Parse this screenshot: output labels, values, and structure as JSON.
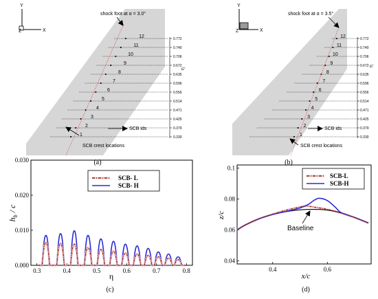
{
  "panel_a": {
    "caption": "(a)",
    "axes": {
      "y": "Y",
      "x": "X",
      "z": "Z"
    },
    "shock_label": "shock foot at α = 3.0°",
    "scb_ids_label": "SCB ids",
    "crest_label": "SCB crest locations",
    "eta_axis_label": "η",
    "ids": [
      "1",
      "2",
      "3",
      "4",
      "5",
      "6",
      "7",
      "8",
      "9",
      "10",
      "11",
      "12"
    ],
    "eta_values": [
      "0.330",
      "0.379",
      "0.425",
      "0.471",
      "0.514",
      "0.556",
      "0.596",
      "0.635",
      "0.672",
      "0.706",
      "0.740",
      "0.772"
    ]
  },
  "panel_b": {
    "caption": "(b)",
    "axes": {
      "y": "Y",
      "x": "X",
      "z": "Z"
    },
    "shock_label": "shock foot at α = 3.5°",
    "scb_ids_label": "SCB ids",
    "crest_label": "SCB crest locations",
    "eta_axis_label": "η",
    "ids": [
      "1",
      "2",
      "3",
      "4",
      "5",
      "6",
      "7",
      "8",
      "9",
      "10",
      "11",
      "12"
    ],
    "eta_values": [
      "0.330",
      "0.379",
      "0.425",
      "0.471",
      "0.514",
      "0.556",
      "0.596",
      "0.635",
      "0.672",
      "0.706",
      "0.740",
      "0.772"
    ]
  },
  "panel_c": {
    "caption": "(c)",
    "legend": [
      "SCB- L",
      "SCB- H"
    ],
    "colors": {
      "L": "#8b2500",
      "H": "#2a2ad6",
      "L_shadow": "#f0b8c8"
    },
    "chart_data": {
      "type": "line",
      "xlabel": "η",
      "ylabel": "h_b / c",
      "xlim": [
        0.28,
        0.82
      ],
      "ylim": [
        0,
        0.03
      ],
      "xticks": [
        "0.3",
        "0.4",
        "0.5",
        "0.6",
        "0.7",
        "0.8"
      ],
      "yticks": [
        "0.000",
        "0.010",
        "0.020",
        "0.030"
      ],
      "bump_centers": [
        0.33,
        0.379,
        0.425,
        0.471,
        0.514,
        0.556,
        0.596,
        0.635,
        0.672,
        0.706,
        0.74,
        0.772
      ],
      "series": [
        {
          "name": "SCB- L",
          "peaks": [
            0.0065,
            0.0062,
            0.006,
            0.005,
            0.0045,
            0.004,
            0.0035,
            0.0032,
            0.0028,
            0.0024,
            0.002,
            0.0016
          ]
        },
        {
          "name": "SCB- H",
          "peaks": [
            0.0085,
            0.009,
            0.0098,
            0.0085,
            0.0075,
            0.0068,
            0.006,
            0.0055,
            0.0048,
            0.0038,
            0.0032,
            0.0024
          ]
        }
      ]
    }
  },
  "panel_d": {
    "caption": "(d)",
    "legend": [
      "SCB-L",
      "SCB-H"
    ],
    "annotation": "Baseline",
    "colors": {
      "L": "#8b2500",
      "H": "#2a2ad6",
      "baseline": "#000000",
      "L_shadow": "#f0b8c8"
    },
    "chart_data": {
      "type": "line",
      "xlabel": "x/c",
      "ylabel": "z/c",
      "xlim": [
        0.27,
        0.76
      ],
      "ylim": [
        0.038,
        0.102
      ],
      "xticks": [
        "0.4",
        "0.6"
      ],
      "yticks": [
        "0.04",
        "0.06",
        "0.08",
        "0.1"
      ],
      "series": [
        {
          "name": "Baseline",
          "x": [
            0.27,
            0.3,
            0.35,
            0.4,
            0.45,
            0.5,
            0.55,
            0.6,
            0.65,
            0.7,
            0.75
          ],
          "y": [
            0.06,
            0.0632,
            0.0672,
            0.07,
            0.0718,
            0.073,
            0.0733,
            0.0728,
            0.071,
            0.068,
            0.0645
          ]
        },
        {
          "name": "SCB-L",
          "x": [
            0.27,
            0.3,
            0.35,
            0.4,
            0.45,
            0.5,
            0.52,
            0.55,
            0.6,
            0.65,
            0.7,
            0.75
          ],
          "y": [
            0.06,
            0.0632,
            0.0672,
            0.0702,
            0.0728,
            0.0748,
            0.0755,
            0.0748,
            0.0733,
            0.071,
            0.068,
            0.0645
          ]
        },
        {
          "name": "SCB-H",
          "x": [
            0.27,
            0.3,
            0.35,
            0.4,
            0.45,
            0.5,
            0.53,
            0.55,
            0.57,
            0.6,
            0.63,
            0.65,
            0.7,
            0.75
          ],
          "y": [
            0.06,
            0.0632,
            0.0672,
            0.07,
            0.072,
            0.0742,
            0.0765,
            0.079,
            0.0805,
            0.079,
            0.0745,
            0.0712,
            0.068,
            0.0645
          ]
        }
      ]
    }
  }
}
